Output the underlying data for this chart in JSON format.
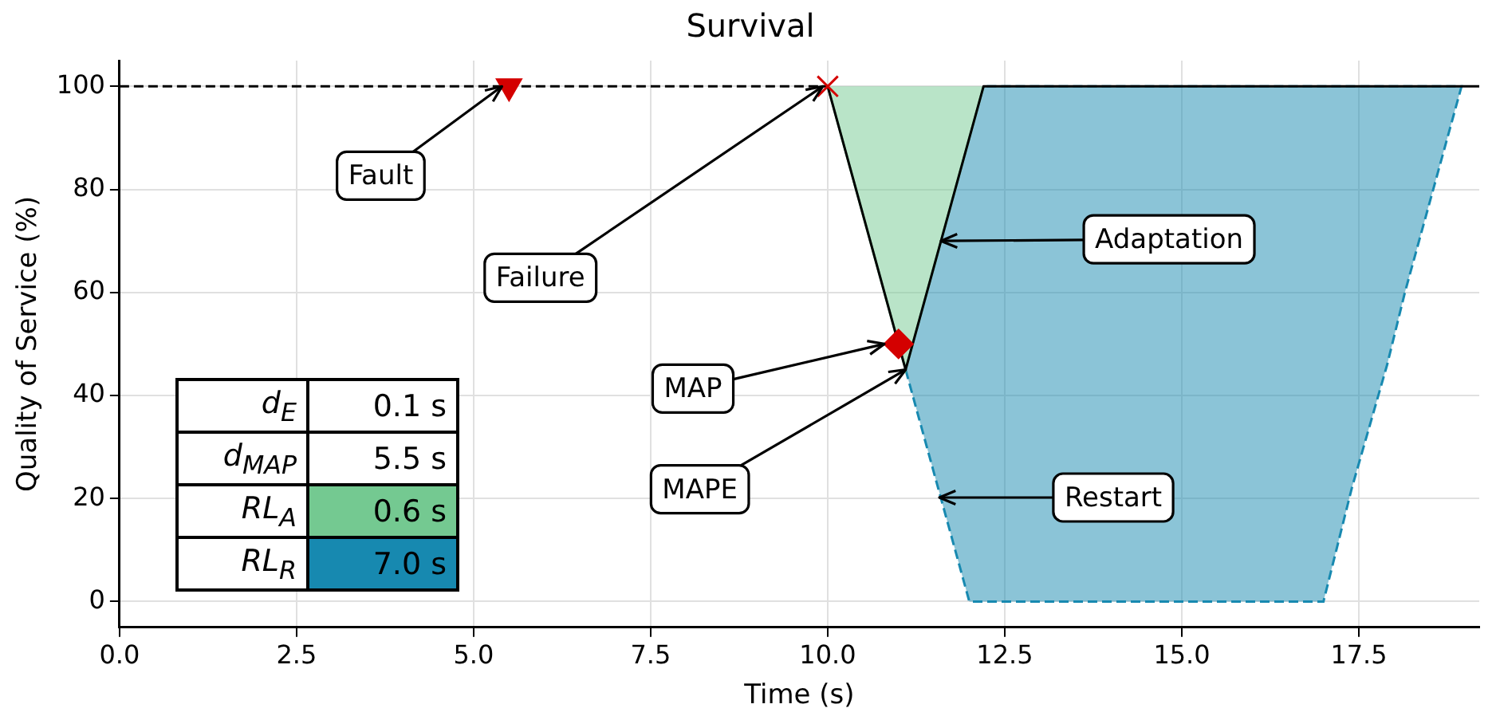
{
  "chart_data": {
    "type": "line",
    "title": "Survival",
    "xlabel": "Time (s)",
    "ylabel": "Quality of Service (%)",
    "xlim": [
      0,
      19.2
    ],
    "xticks": [
      {
        "value": 0,
        "label": "0.0"
      },
      {
        "value": 2.5,
        "label": "2.5"
      },
      {
        "value": 5,
        "label": "5.0"
      },
      {
        "value": 7.5,
        "label": "7.5"
      },
      {
        "value": 10,
        "label": "10.0"
      },
      {
        "value": 12.5,
        "label": "12.5"
      },
      {
        "value": 15,
        "label": "15.0"
      },
      {
        "value": 17.5,
        "label": "17.5"
      }
    ],
    "ylim": [
      -5,
      105
    ],
    "yticks": [
      0,
      20,
      40,
      60,
      80,
      100
    ],
    "grid": true,
    "legend": false,
    "series": [
      {
        "type": "area",
        "color": "#74c991",
        "x": [
          10,
          11.1,
          12.2
        ],
        "values": [
          100,
          45,
          100
        ]
      },
      {
        "type": "area",
        "color": "#1789b0",
        "line_style": "dashed",
        "x": [
          11.1,
          11.6,
          12,
          17,
          17.4,
          17.9,
          18.15,
          18.55,
          18.95,
          12.2
        ],
        "values": [
          45,
          20,
          0,
          0,
          22,
          46,
          60,
          80,
          100,
          100
        ]
      },
      {
        "type": "line",
        "color": "#000000",
        "line_style": "dashed",
        "marker": "none",
        "x": [
          0,
          10
        ],
        "values": [
          100,
          100
        ]
      },
      {
        "type": "line",
        "color": "#000000",
        "line_style": "solid",
        "marker": "none",
        "x": [
          10,
          11.1,
          12.2,
          19.2
        ],
        "values": [
          100,
          45,
          100,
          100
        ]
      },
      {
        "type": "scatter",
        "color": "#d40000",
        "marker": "triangle",
        "x": [
          5.5
        ],
        "values": [
          100
        ]
      },
      {
        "type": "scatter",
        "color": "#d40000",
        "marker": "cross",
        "x": [
          10
        ],
        "values": [
          100
        ]
      },
      {
        "type": "scatter",
        "color": "#d40000",
        "marker": "diamond",
        "x": [
          11
        ],
        "values": [
          50
        ]
      }
    ],
    "annotations": [
      {
        "text": "Fault",
        "x": 5.4,
        "y": 100
      },
      {
        "text": "Failure",
        "x": 9.93,
        "y": 100
      },
      {
        "text": "Adaptation",
        "x": 11.6,
        "y": 70
      },
      {
        "text": "MAP",
        "x": 10.8,
        "y": 50
      },
      {
        "text": "MAPE",
        "x": 11.1,
        "y": 45
      },
      "Restart",
      "d$_{E}$",
      "0.1 s",
      "d$_{MAP}$",
      "5.5 s",
      "RL$_{A}$",
      "0.6 s",
      "RL$_{R}$",
      "7.0 s"
    ]
  }
}
